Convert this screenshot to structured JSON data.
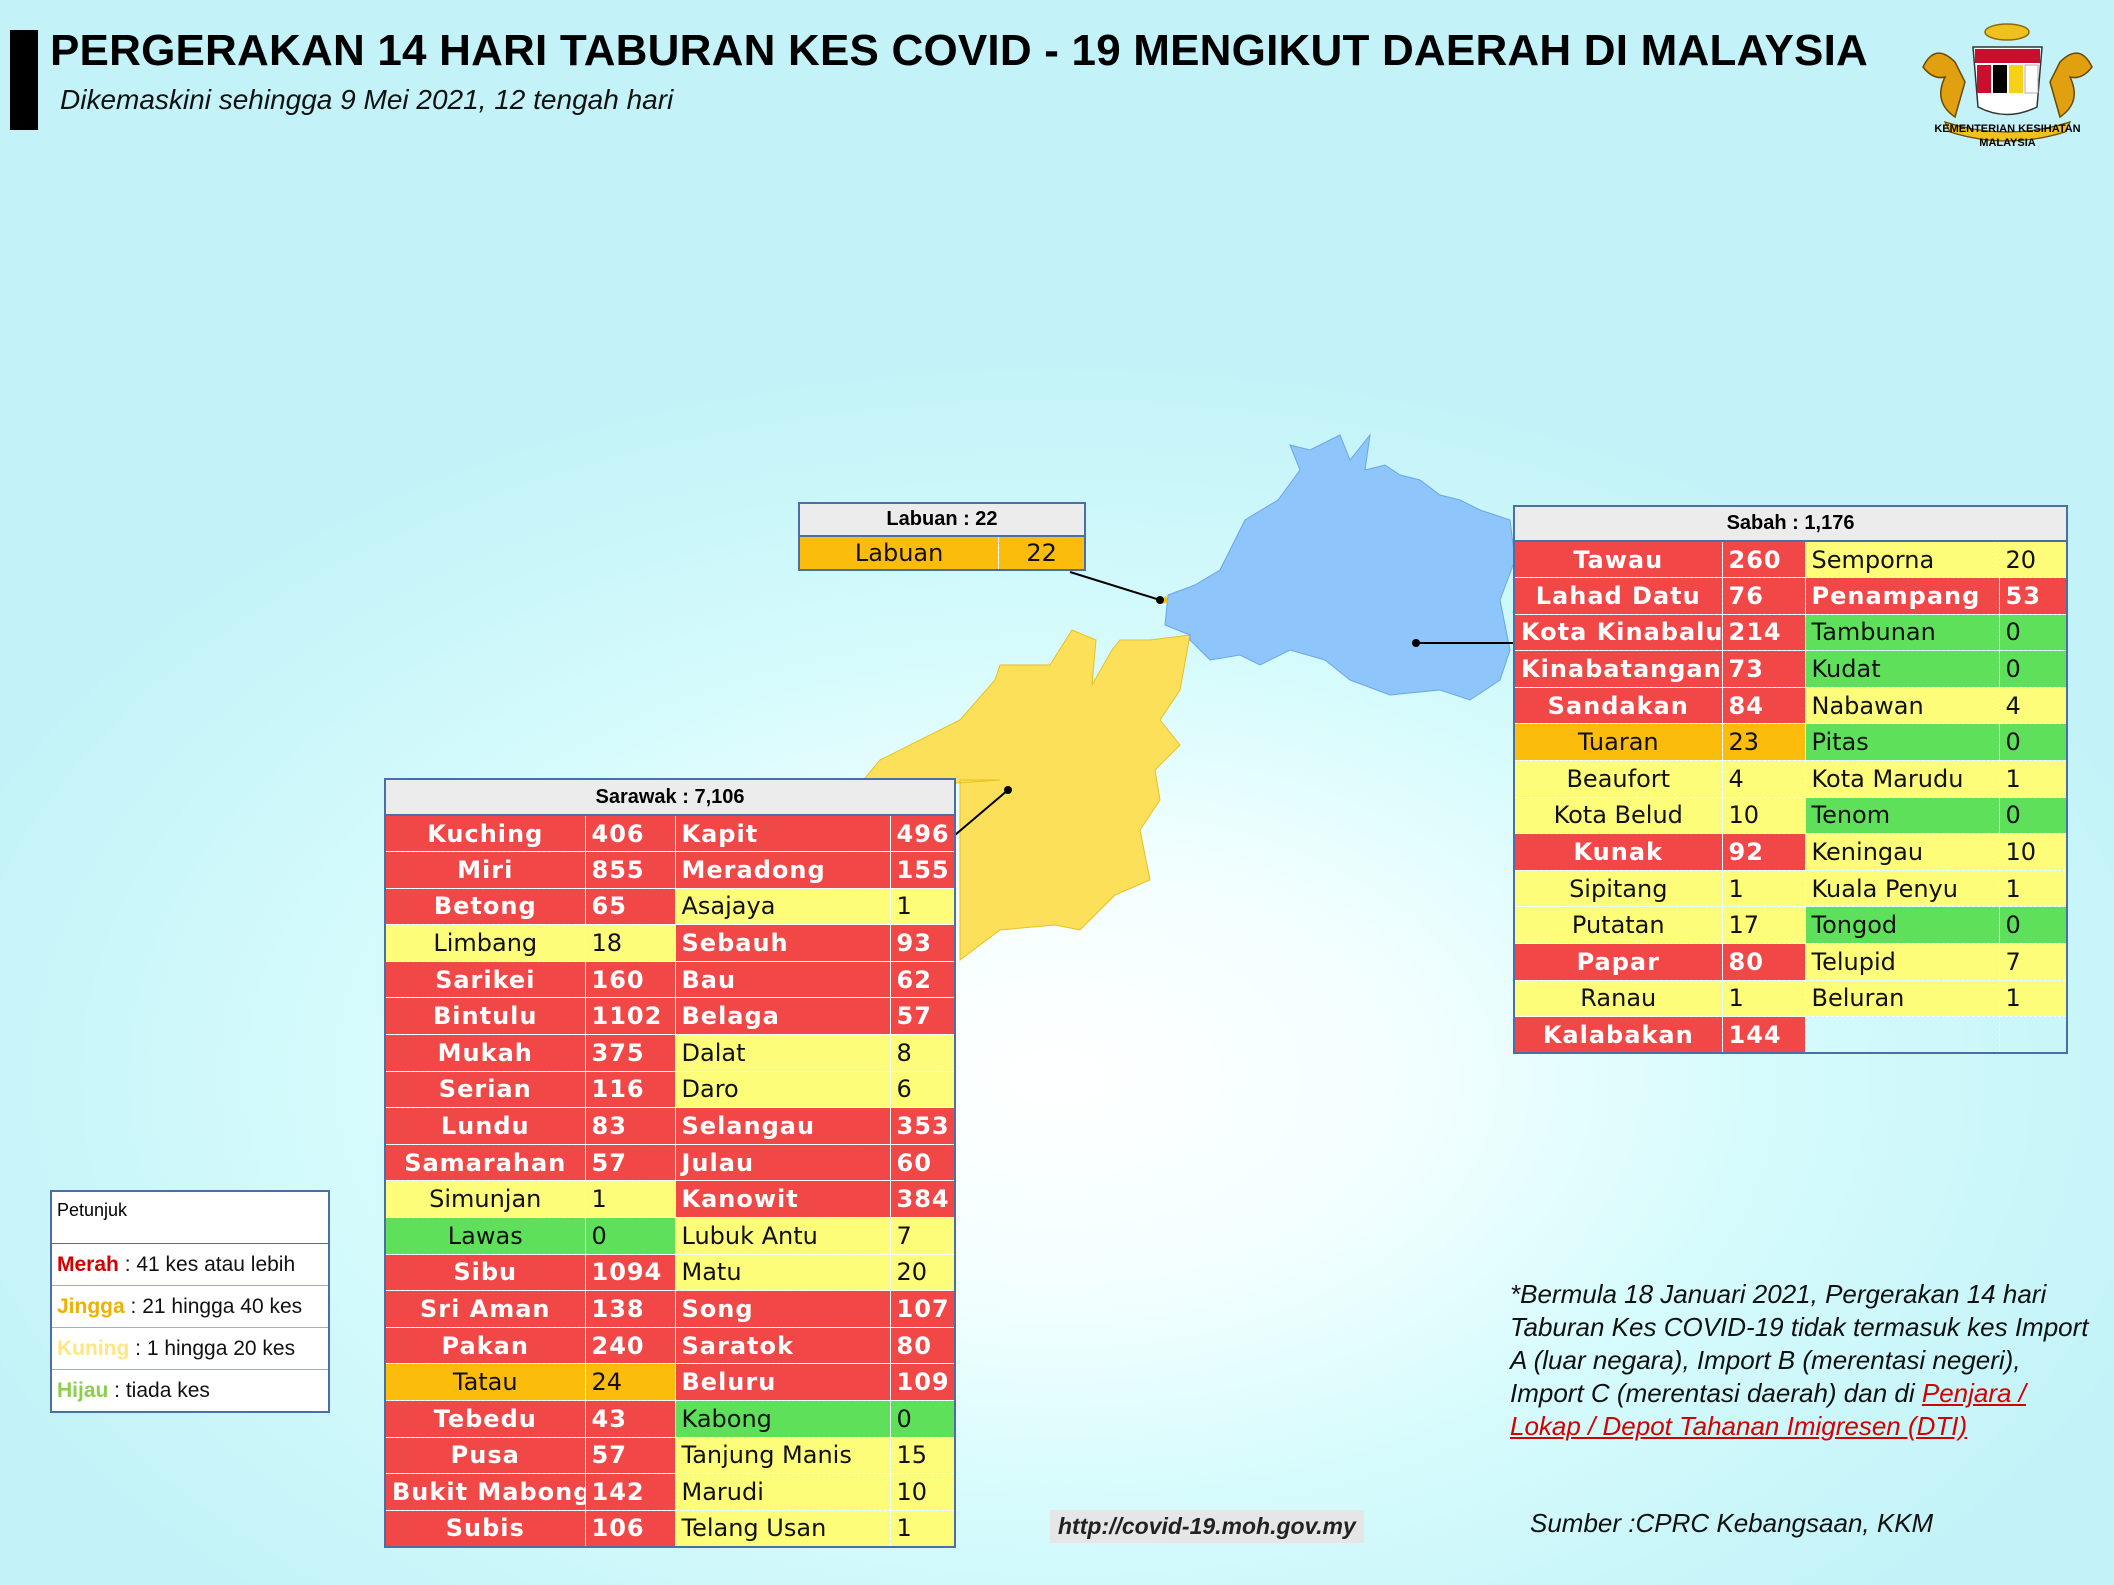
{
  "header": {
    "title": "PERGERAKAN 14 HARI TABURAN KES COVID - 19 MENGIKUT DAERAH DI MALAYSIA",
    "subtitle": "Dikemaskini sehingga 9 Mei 2021, 12 tengah hari"
  },
  "logo": {
    "org_line1": "KEMENTERIAN KESIHATAN",
    "org_line2": "MALAYSIA"
  },
  "colors": {
    "red": "#f24747",
    "orange": "#fcbc0c",
    "yellow": "#fdfd7a",
    "green": "#5fe05a",
    "sabah_map": "#8ec5fb",
    "sarawak_map": "#fde05a"
  },
  "labuan": {
    "header": "Labuan : 22",
    "rows": [
      {
        "name": "Labuan",
        "value": "22",
        "level": "orange"
      }
    ]
  },
  "sabah": {
    "header": "Sabah : 1,176",
    "rows": [
      {
        "left": {
          "name": "Tawau",
          "value": "260",
          "level": "red"
        },
        "right": {
          "name": "Semporna",
          "value": "20",
          "level": "yellow"
        }
      },
      {
        "left": {
          "name": "Lahad Datu",
          "value": "76",
          "level": "red"
        },
        "right": {
          "name": "Penampang",
          "value": "53",
          "level": "red"
        }
      },
      {
        "left": {
          "name": "Kota Kinabalu",
          "value": "214",
          "level": "red"
        },
        "right": {
          "name": "Tambunan",
          "value": "0",
          "level": "green"
        }
      },
      {
        "left": {
          "name": "Kinabatangan",
          "value": "73",
          "level": "red"
        },
        "right": {
          "name": "Kudat",
          "value": "0",
          "level": "green"
        }
      },
      {
        "left": {
          "name": "Sandakan",
          "value": "84",
          "level": "red"
        },
        "right": {
          "name": "Nabawan",
          "value": "4",
          "level": "yellow"
        }
      },
      {
        "left": {
          "name": "Tuaran",
          "value": "23",
          "level": "orange"
        },
        "right": {
          "name": "Pitas",
          "value": "0",
          "level": "green"
        }
      },
      {
        "left": {
          "name": "Beaufort",
          "value": "4",
          "level": "yellow"
        },
        "right": {
          "name": "Kota Marudu",
          "value": "1",
          "level": "yellow"
        }
      },
      {
        "left": {
          "name": "Kota Belud",
          "value": "10",
          "level": "yellow"
        },
        "right": {
          "name": "Tenom",
          "value": "0",
          "level": "green"
        }
      },
      {
        "left": {
          "name": "Kunak",
          "value": "92",
          "level": "red"
        },
        "right": {
          "name": "Keningau",
          "value": "10",
          "level": "yellow"
        }
      },
      {
        "left": {
          "name": "Sipitang",
          "value": "1",
          "level": "yellow"
        },
        "right": {
          "name": "Kuala Penyu",
          "value": "1",
          "level": "yellow"
        }
      },
      {
        "left": {
          "name": "Putatan",
          "value": "17",
          "level": "yellow"
        },
        "right": {
          "name": "Tongod",
          "value": "0",
          "level": "green"
        }
      },
      {
        "left": {
          "name": "Papar",
          "value": "80",
          "level": "red"
        },
        "right": {
          "name": "Telupid",
          "value": "7",
          "level": "yellow"
        }
      },
      {
        "left": {
          "name": "Ranau",
          "value": "1",
          "level": "yellow"
        },
        "right": {
          "name": "Beluran",
          "value": "1",
          "level": "yellow"
        }
      },
      {
        "left": {
          "name": "Kalabakan",
          "value": "144",
          "level": "red"
        },
        "right": null
      }
    ]
  },
  "sarawak": {
    "header": "Sarawak : 7,106",
    "rows": [
      {
        "left": {
          "name": "Kuching",
          "value": "406",
          "level": "red"
        },
        "right": {
          "name": "Kapit",
          "value": "496",
          "level": "red"
        }
      },
      {
        "left": {
          "name": "Miri",
          "value": "855",
          "level": "red"
        },
        "right": {
          "name": "Meradong",
          "value": "155",
          "level": "red"
        }
      },
      {
        "left": {
          "name": "Betong",
          "value": "65",
          "level": "red"
        },
        "right": {
          "name": "Asajaya",
          "value": "1",
          "level": "yellow"
        }
      },
      {
        "left": {
          "name": "Limbang",
          "value": "18",
          "level": "yellow"
        },
        "right": {
          "name": "Sebauh",
          "value": "93",
          "level": "red"
        }
      },
      {
        "left": {
          "name": "Sarikei",
          "value": "160",
          "level": "red"
        },
        "right": {
          "name": "Bau",
          "value": "62",
          "level": "red"
        }
      },
      {
        "left": {
          "name": "Bintulu",
          "value": "1102",
          "level": "red"
        },
        "right": {
          "name": "Belaga",
          "value": "57",
          "level": "red"
        }
      },
      {
        "left": {
          "name": "Mukah",
          "value": "375",
          "level": "red"
        },
        "right": {
          "name": "Dalat",
          "value": "8",
          "level": "yellow"
        }
      },
      {
        "left": {
          "name": "Serian",
          "value": "116",
          "level": "red"
        },
        "right": {
          "name": "Daro",
          "value": "6",
          "level": "yellow"
        }
      },
      {
        "left": {
          "name": "Lundu",
          "value": "83",
          "level": "red"
        },
        "right": {
          "name": "Selangau",
          "value": "353",
          "level": "red"
        }
      },
      {
        "left": {
          "name": "Samarahan",
          "value": "57",
          "level": "red"
        },
        "right": {
          "name": "Julau",
          "value": "60",
          "level": "red"
        }
      },
      {
        "left": {
          "name": "Simunjan",
          "value": "1",
          "level": "yellow"
        },
        "right": {
          "name": "Kanowit",
          "value": "384",
          "level": "red"
        }
      },
      {
        "left": {
          "name": "Lawas",
          "value": "0",
          "level": "green"
        },
        "right": {
          "name": "Lubuk Antu",
          "value": "7",
          "level": "yellow"
        }
      },
      {
        "left": {
          "name": "Sibu",
          "value": "1094",
          "level": "red"
        },
        "right": {
          "name": "Matu",
          "value": "20",
          "level": "yellow"
        }
      },
      {
        "left": {
          "name": "Sri Aman",
          "value": "138",
          "level": "red"
        },
        "right": {
          "name": "Song",
          "value": "107",
          "level": "red"
        }
      },
      {
        "left": {
          "name": "Pakan",
          "value": "240",
          "level": "red"
        },
        "right": {
          "name": "Saratok",
          "value": "80",
          "level": "red"
        }
      },
      {
        "left": {
          "name": "Tatau",
          "value": "24",
          "level": "orange"
        },
        "right": {
          "name": "Beluru",
          "value": "109",
          "level": "red"
        }
      },
      {
        "left": {
          "name": "Tebedu",
          "value": "43",
          "level": "red"
        },
        "right": {
          "name": "Kabong",
          "value": "0",
          "level": "green"
        }
      },
      {
        "left": {
          "name": "Pusa",
          "value": "57",
          "level": "red"
        },
        "right": {
          "name": "Tanjung Manis",
          "value": "15",
          "level": "yellow"
        }
      },
      {
        "left": {
          "name": "Bukit Mabong",
          "value": "142",
          "level": "red"
        },
        "right": {
          "name": "Marudi",
          "value": "10",
          "level": "yellow"
        }
      },
      {
        "left": {
          "name": "Subis",
          "value": "106",
          "level": "red"
        },
        "right": {
          "name": "Telang Usan",
          "value": "1",
          "level": "yellow"
        }
      }
    ]
  },
  "legend": {
    "title": "Petunjuk",
    "items": [
      {
        "key": "Merah",
        "desc": " : 41 kes atau lebih",
        "color": "#d40000"
      },
      {
        "key": "Jingga",
        "desc": " : 21 hingga 40 kes",
        "color": "#f0b000"
      },
      {
        "key": "Kuning",
        "desc": " : 1 hingga 20 kes",
        "color": "#ffe680"
      },
      {
        "key": "Hijau",
        "desc": " : tiada kes",
        "color": "#8bd04a"
      }
    ]
  },
  "note": {
    "text": "*Bermula 18 Januari 2021, Pergerakan 14 hari Taburan Kes COVID-19 tidak termasuk kes Import A (luar negara), Import B (merentasi negeri), Import C (merentasi daerah) dan di ",
    "link_text": "Penjara / Lokap / Depot Tahanan Imigresen (DTI)"
  },
  "url": "http://covid-19.moh.gov.my",
  "source": "Sumber :CPRC Kebangsaan,  KKM"
}
